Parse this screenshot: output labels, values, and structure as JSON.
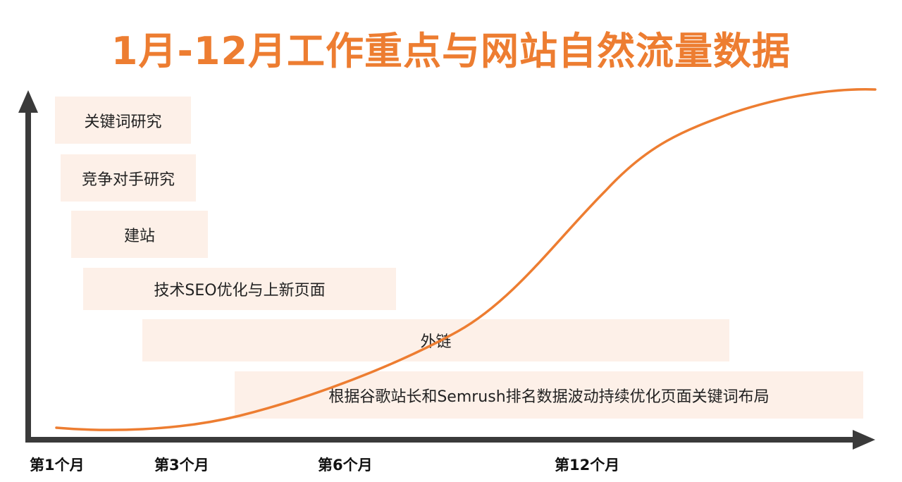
{
  "title": "1月-12月工作重点与网站自然流量数据",
  "tasks": [
    {
      "label": "关键词研究"
    },
    {
      "label": "竞争对手研究"
    },
    {
      "label": "建站"
    },
    {
      "label": "技术SEO优化与上新页面"
    },
    {
      "label": "外链"
    },
    {
      "label": "根据谷歌站长和Semrush排名数据波动持续优化页面关键词布局"
    }
  ],
  "x_ticks": [
    "第1个月",
    "第3个月",
    "第6个月",
    "第12个月"
  ],
  "colors": {
    "title": "#ed7d31",
    "curve": "#ed7d31",
    "axis": "#3a3a3a",
    "task_fill": "#fce4d6"
  }
}
